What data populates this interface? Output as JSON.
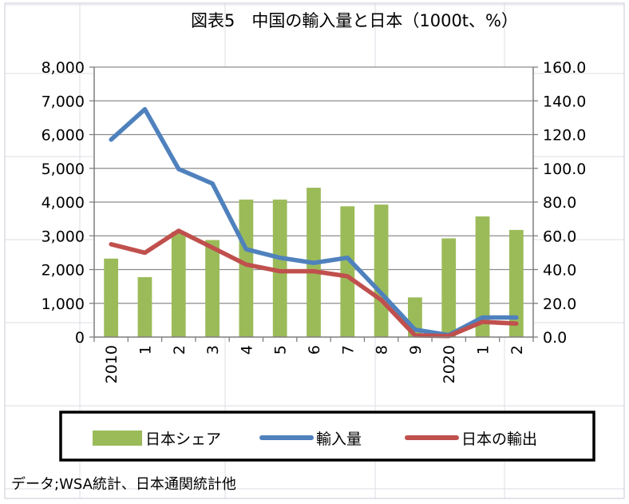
{
  "source_note": "データ;WSA統計、日本通関統計他",
  "chart_data": {
    "type": "bar+line",
    "title": "図表5　中国の輸入量と日本（1000t、%）",
    "categories": [
      "2010",
      "1",
      "2",
      "3",
      "4",
      "5",
      "6",
      "7",
      "8",
      "9",
      "2020",
      "1",
      "2"
    ],
    "y_left": {
      "min": 0,
      "max": 8000,
      "ticks": [
        "0",
        "1,000",
        "2,000",
        "3,000",
        "4,000",
        "5,000",
        "6,000",
        "7,000",
        "8,000"
      ]
    },
    "y_right": {
      "min": 0,
      "max": 160,
      "ticks": [
        "0.0",
        "20.0",
        "40.0",
        "60.0",
        "80.0",
        "100.0",
        "120.0",
        "140.0",
        "160.0"
      ]
    },
    "grid": true,
    "legend_position": "bottom",
    "series": [
      {
        "name": "日本シェア",
        "type": "bar",
        "axis": "right",
        "color": "#9bbb59",
        "values": [
          46.5,
          35.5,
          62.5,
          57.5,
          81.5,
          81.5,
          88.5,
          77.5,
          78.5,
          23.5,
          58.5,
          71.5,
          63.5
        ]
      },
      {
        "name": "輸入量",
        "type": "line",
        "axis": "left",
        "color": "#4f81bd",
        "values": [
          5850,
          6750,
          4980,
          4550,
          2600,
          2350,
          2200,
          2350,
          1300,
          220,
          60,
          580,
          580
        ]
      },
      {
        "name": "日本の輸出",
        "type": "line",
        "axis": "left",
        "color": "#c0504d",
        "values": [
          2750,
          2500,
          3150,
          2650,
          2150,
          1950,
          1950,
          1800,
          1100,
          50,
          30,
          450,
          400
        ]
      }
    ]
  }
}
